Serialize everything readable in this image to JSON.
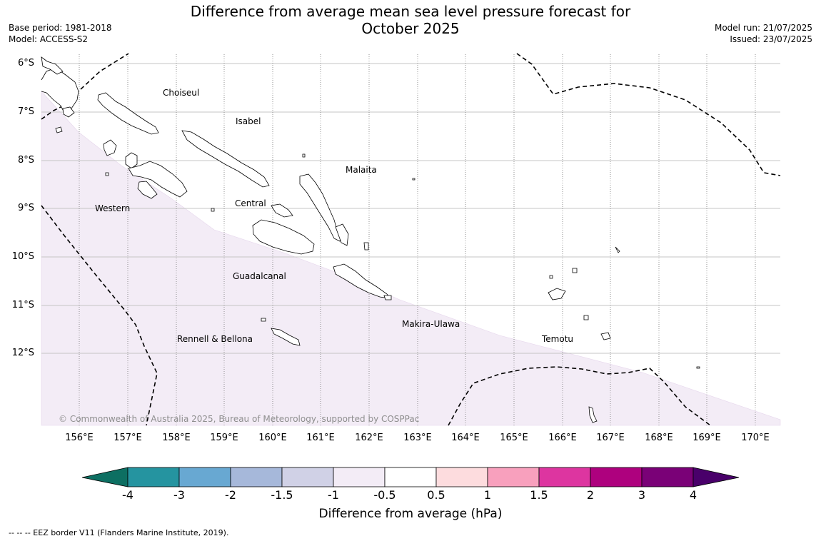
{
  "title_line1": "Difference from average mean sea level pressure forecast for",
  "title_line2": "October 2025",
  "meta_left": {
    "base_period": "Base period: 1981-2018",
    "model": "Model: ACCESS-S2"
  },
  "meta_right": {
    "model_run": "Model run: 21/07/2025",
    "issued": "Issued: 23/07/2025"
  },
  "map": {
    "lat_labels": [
      "6°S",
      "7°S",
      "8°S",
      "9°S",
      "10°S",
      "11°S",
      "12°S"
    ],
    "lon_labels": [
      "156°E",
      "157°E",
      "158°E",
      "159°E",
      "160°E",
      "161°E",
      "162°E",
      "163°E",
      "164°E",
      "165°E",
      "166°E",
      "167°E",
      "168°E",
      "169°E",
      "170°E"
    ],
    "regions": {
      "choiseul": "Choiseul",
      "isabel": "Isabel",
      "malaita": "Malaita",
      "central": "Central",
      "western": "Western",
      "guadalcanal": "Guadalcanal",
      "makira": "Makira-Ulawa",
      "temotu": "Temotu",
      "rennell": "Rennell & Bellona"
    },
    "copyright": "© Commonwealth of Australia 2025, Bureau of Meteorology, supported by COSPPac",
    "shaded_category": "-1 to -0.5"
  },
  "colorbar": {
    "title": "Difference from average (hPa)",
    "ticks": [
      "-4",
      "-3",
      "-2",
      "-1.5",
      "-1",
      "-0.5",
      "0.5",
      "1",
      "1.5",
      "2",
      "3",
      "4"
    ],
    "colors": {
      "below_min": "#0d6f62",
      "c1": "#2594a0",
      "c2": "#68a8d2",
      "c3": "#a6b8da",
      "c4": "#d0d1e6",
      "c5": "#f3ecf6",
      "c6": "#ffffff",
      "c7": "#fddcde",
      "c8": "#f8a0bd",
      "c9": "#dd35a0",
      "c10": "#ae017e",
      "c11": "#7a0177",
      "above_max": "#49006a"
    }
  },
  "footnote": "--  --  -- EEZ border V11 (Flanders Marine Institute, 2019)."
}
